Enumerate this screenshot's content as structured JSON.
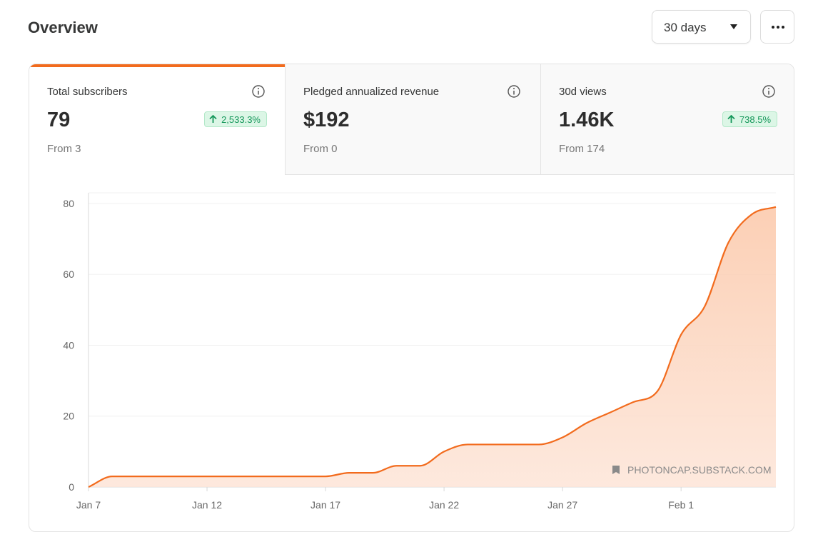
{
  "header": {
    "title": "Overview",
    "range": "30 days"
  },
  "stats": [
    {
      "label": "Total subscribers",
      "value": "79",
      "from": "From 3",
      "change": "2,533.3%"
    },
    {
      "label": "Pledged annualized revenue",
      "value": "$192",
      "from": "From 0"
    },
    {
      "label": "30d views",
      "value": "1.46K",
      "from": "From 174",
      "change": "738.5%"
    }
  ],
  "chart_data": {
    "type": "area",
    "categories": [
      "Jan 7",
      null,
      null,
      null,
      null,
      "Jan 12",
      null,
      null,
      null,
      null,
      "Jan 17",
      null,
      null,
      null,
      null,
      "Jan 22",
      null,
      null,
      null,
      null,
      "Jan 27",
      null,
      null,
      null,
      null,
      "Feb 1",
      null,
      null,
      null,
      null
    ],
    "values": [
      0,
      3,
      3,
      3,
      3,
      3,
      3,
      3,
      3,
      3,
      3,
      4,
      4,
      6,
      6,
      10,
      12,
      12,
      12,
      12,
      14,
      18,
      21,
      24,
      27,
      43,
      51,
      69,
      77,
      79
    ],
    "color": "#f26b1d",
    "ylim": [
      0,
      83
    ],
    "yticks": [
      0,
      20,
      40,
      60,
      80
    ],
    "grid": true,
    "watermark": "PHOTONCAP.SUBSTACK.COM"
  }
}
